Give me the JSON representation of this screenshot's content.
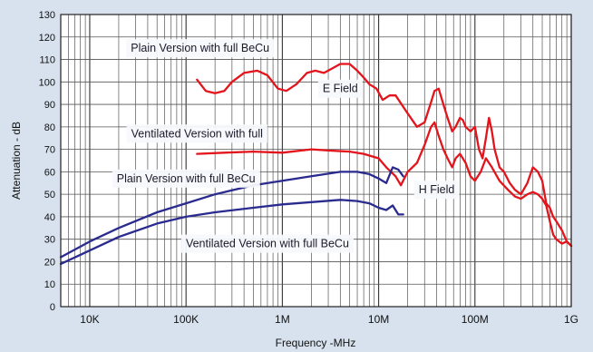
{
  "chart_data": {
    "type": "line",
    "xlabel": "Frequency -MHz",
    "ylabel": "Attenuation - dB",
    "x_scale": "log",
    "xlim": [
      5000,
      1000000000
    ],
    "ylim": [
      0,
      130
    ],
    "y_ticks": [
      0,
      10,
      20,
      30,
      40,
      50,
      60,
      70,
      80,
      90,
      100,
      110,
      120,
      130
    ],
    "x_ticks": [
      {
        "value": 10000,
        "label": "10K"
      },
      {
        "value": 100000,
        "label": "100K"
      },
      {
        "value": 1000000,
        "label": "1M"
      },
      {
        "value": 10000000,
        "label": "10M"
      },
      {
        "value": 100000000,
        "label": "100M"
      },
      {
        "value": 1000000000,
        "label": "1G"
      }
    ],
    "grid": true,
    "annotations": [
      {
        "text": "Plain Version with full BeCu",
        "x": 140000,
        "y": 115
      },
      {
        "text": "E Field",
        "x": 4000000,
        "y": 97
      },
      {
        "text": "Ventilated Version with full",
        "x": 130000,
        "y": 77
      },
      {
        "text": "Plain Version with full BeCu",
        "x": 100000,
        "y": 57
      },
      {
        "text": "H Field",
        "x": 40000000,
        "y": 52
      },
      {
        "text": "Ventilated Version with full BeCu",
        "x": 700000,
        "y": 28
      }
    ],
    "series": [
      {
        "color": "#e3141c",
        "x": [
          130000,
          160000,
          200000,
          250000,
          300000,
          400000,
          550000,
          700000,
          900000,
          1100000,
          1400000,
          1800000,
          2200000,
          2700000,
          3300000,
          4000000,
          5000000,
          6000000,
          7000000,
          8000000,
          9500000,
          11000000,
          13000000,
          15000000,
          20000000,
          25000000,
          30000000,
          35000000,
          38000000,
          42000000,
          47000000,
          52000000,
          58000000,
          63000000,
          70000000,
          75000000,
          80000000,
          90000000,
          100000000,
          110000000,
          120000000,
          130000000,
          140000000,
          150000000,
          160000000,
          180000000,
          200000000,
          230000000,
          260000000,
          300000000,
          350000000,
          400000000,
          450000000,
          500000000,
          550000000,
          600000000,
          650000000,
          700000000,
          800000000,
          900000000,
          1000000000
        ],
        "y": [
          101,
          96,
          95,
          96,
          100,
          104,
          105,
          103,
          97,
          96,
          99,
          104,
          105,
          104,
          106,
          108,
          108,
          105,
          102,
          99,
          97,
          92,
          94,
          94,
          86,
          80,
          82,
          91,
          96,
          97,
          90,
          84,
          78,
          80,
          84,
          83,
          80,
          78,
          80,
          70,
          66,
          75,
          84,
          78,
          70,
          62,
          60,
          55,
          52,
          50,
          55,
          62,
          60,
          56,
          46,
          44,
          40,
          38,
          34,
          29,
          27
        ]
      },
      {
        "color": "#e3141c",
        "x": [
          130000,
          250000,
          500000,
          1000000,
          2000000,
          3000000,
          5000000,
          7000000,
          10000000,
          12000000,
          15000000,
          17000000,
          20000000,
          25000000,
          30000000,
          35000000,
          38000000,
          42000000,
          47000000,
          52000000,
          58000000,
          63000000,
          70000000,
          80000000,
          90000000,
          100000000,
          115000000,
          130000000,
          150000000,
          180000000,
          220000000,
          260000000,
          300000000,
          350000000,
          400000000,
          450000000,
          500000000,
          550000000,
          600000000,
          650000000,
          700000000,
          800000000,
          900000000,
          1000000000
        ],
        "y": [
          68,
          68.5,
          69,
          68.5,
          70,
          69.5,
          69,
          68,
          66,
          62,
          58,
          54,
          60,
          64,
          72,
          80,
          82,
          76,
          70,
          66,
          62,
          66,
          68,
          64,
          58,
          56,
          60,
          66,
          62,
          56,
          52,
          49,
          48,
          50,
          51,
          50,
          48,
          45,
          38,
          32,
          30,
          28,
          29,
          27
        ]
      },
      {
        "color": "#2a2b8e",
        "x": [
          5000,
          10000,
          20000,
          50000,
          100000,
          200000,
          500000,
          1000000,
          2000000,
          4000000,
          6000000,
          8000000,
          10000000,
          12000000,
          14000000,
          16000000,
          18000000
        ],
        "y": [
          22,
          29,
          35,
          42,
          46,
          50,
          54,
          56,
          58,
          60,
          60,
          59,
          57,
          55,
          62,
          61,
          58
        ]
      },
      {
        "color": "#2a2b8e",
        "x": [
          5000,
          10000,
          20000,
          50000,
          100000,
          200000,
          500000,
          1000000,
          2000000,
          4000000,
          6000000,
          8000000,
          10000000,
          12000000,
          14000000,
          16000000,
          18000000
        ],
        "y": [
          19,
          25,
          31,
          37,
          40,
          42,
          44,
          45.5,
          46.5,
          47.5,
          47,
          46,
          44,
          43,
          45,
          41,
          41
        ]
      }
    ]
  }
}
